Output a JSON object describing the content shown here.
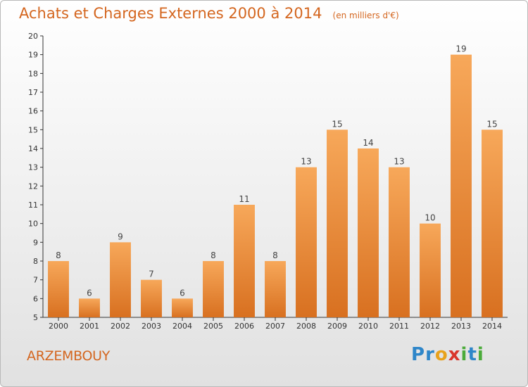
{
  "title": "Achats et Charges Externes 2000 à 2014",
  "subtitle": "(en milliers d'€)",
  "town": "ARZEMBOUY",
  "logo": {
    "text": "Proxiti",
    "letters": [
      {
        "ch": "P",
        "color": "#2e86c9"
      },
      {
        "ch": "r",
        "color": "#2e86c9"
      },
      {
        "ch": "o",
        "color": "#e8a21c"
      },
      {
        "ch": "x",
        "color": "#d9362b"
      },
      {
        "ch": "i",
        "color": "#4bab3a"
      },
      {
        "ch": "t",
        "color": "#2e86c9"
      },
      {
        "ch": "i",
        "color": "#4bab3a"
      }
    ]
  },
  "colors": {
    "accent": "#d4661f",
    "bar_light": "#f7a85a",
    "bar_dark": "#d87020"
  },
  "chart_data": {
    "type": "bar",
    "title": "Achats et Charges Externes 2000 à 2014",
    "subtitle": "(en milliers d'€)",
    "xlabel": "",
    "ylabel": "",
    "categories": [
      "2000",
      "2001",
      "2002",
      "2003",
      "2004",
      "2005",
      "2006",
      "2007",
      "2008",
      "2009",
      "2010",
      "2011",
      "2012",
      "2013",
      "2014"
    ],
    "values": [
      8,
      6,
      9,
      7,
      6,
      8,
      11,
      8,
      13,
      15,
      14,
      13,
      10,
      19,
      15
    ],
    "ylim": [
      5,
      20
    ],
    "yticks": [
      5,
      6,
      7,
      8,
      9,
      10,
      11,
      12,
      13,
      14,
      15,
      16,
      17,
      18,
      19,
      20
    ],
    "grid": false,
    "data_labels": true
  }
}
